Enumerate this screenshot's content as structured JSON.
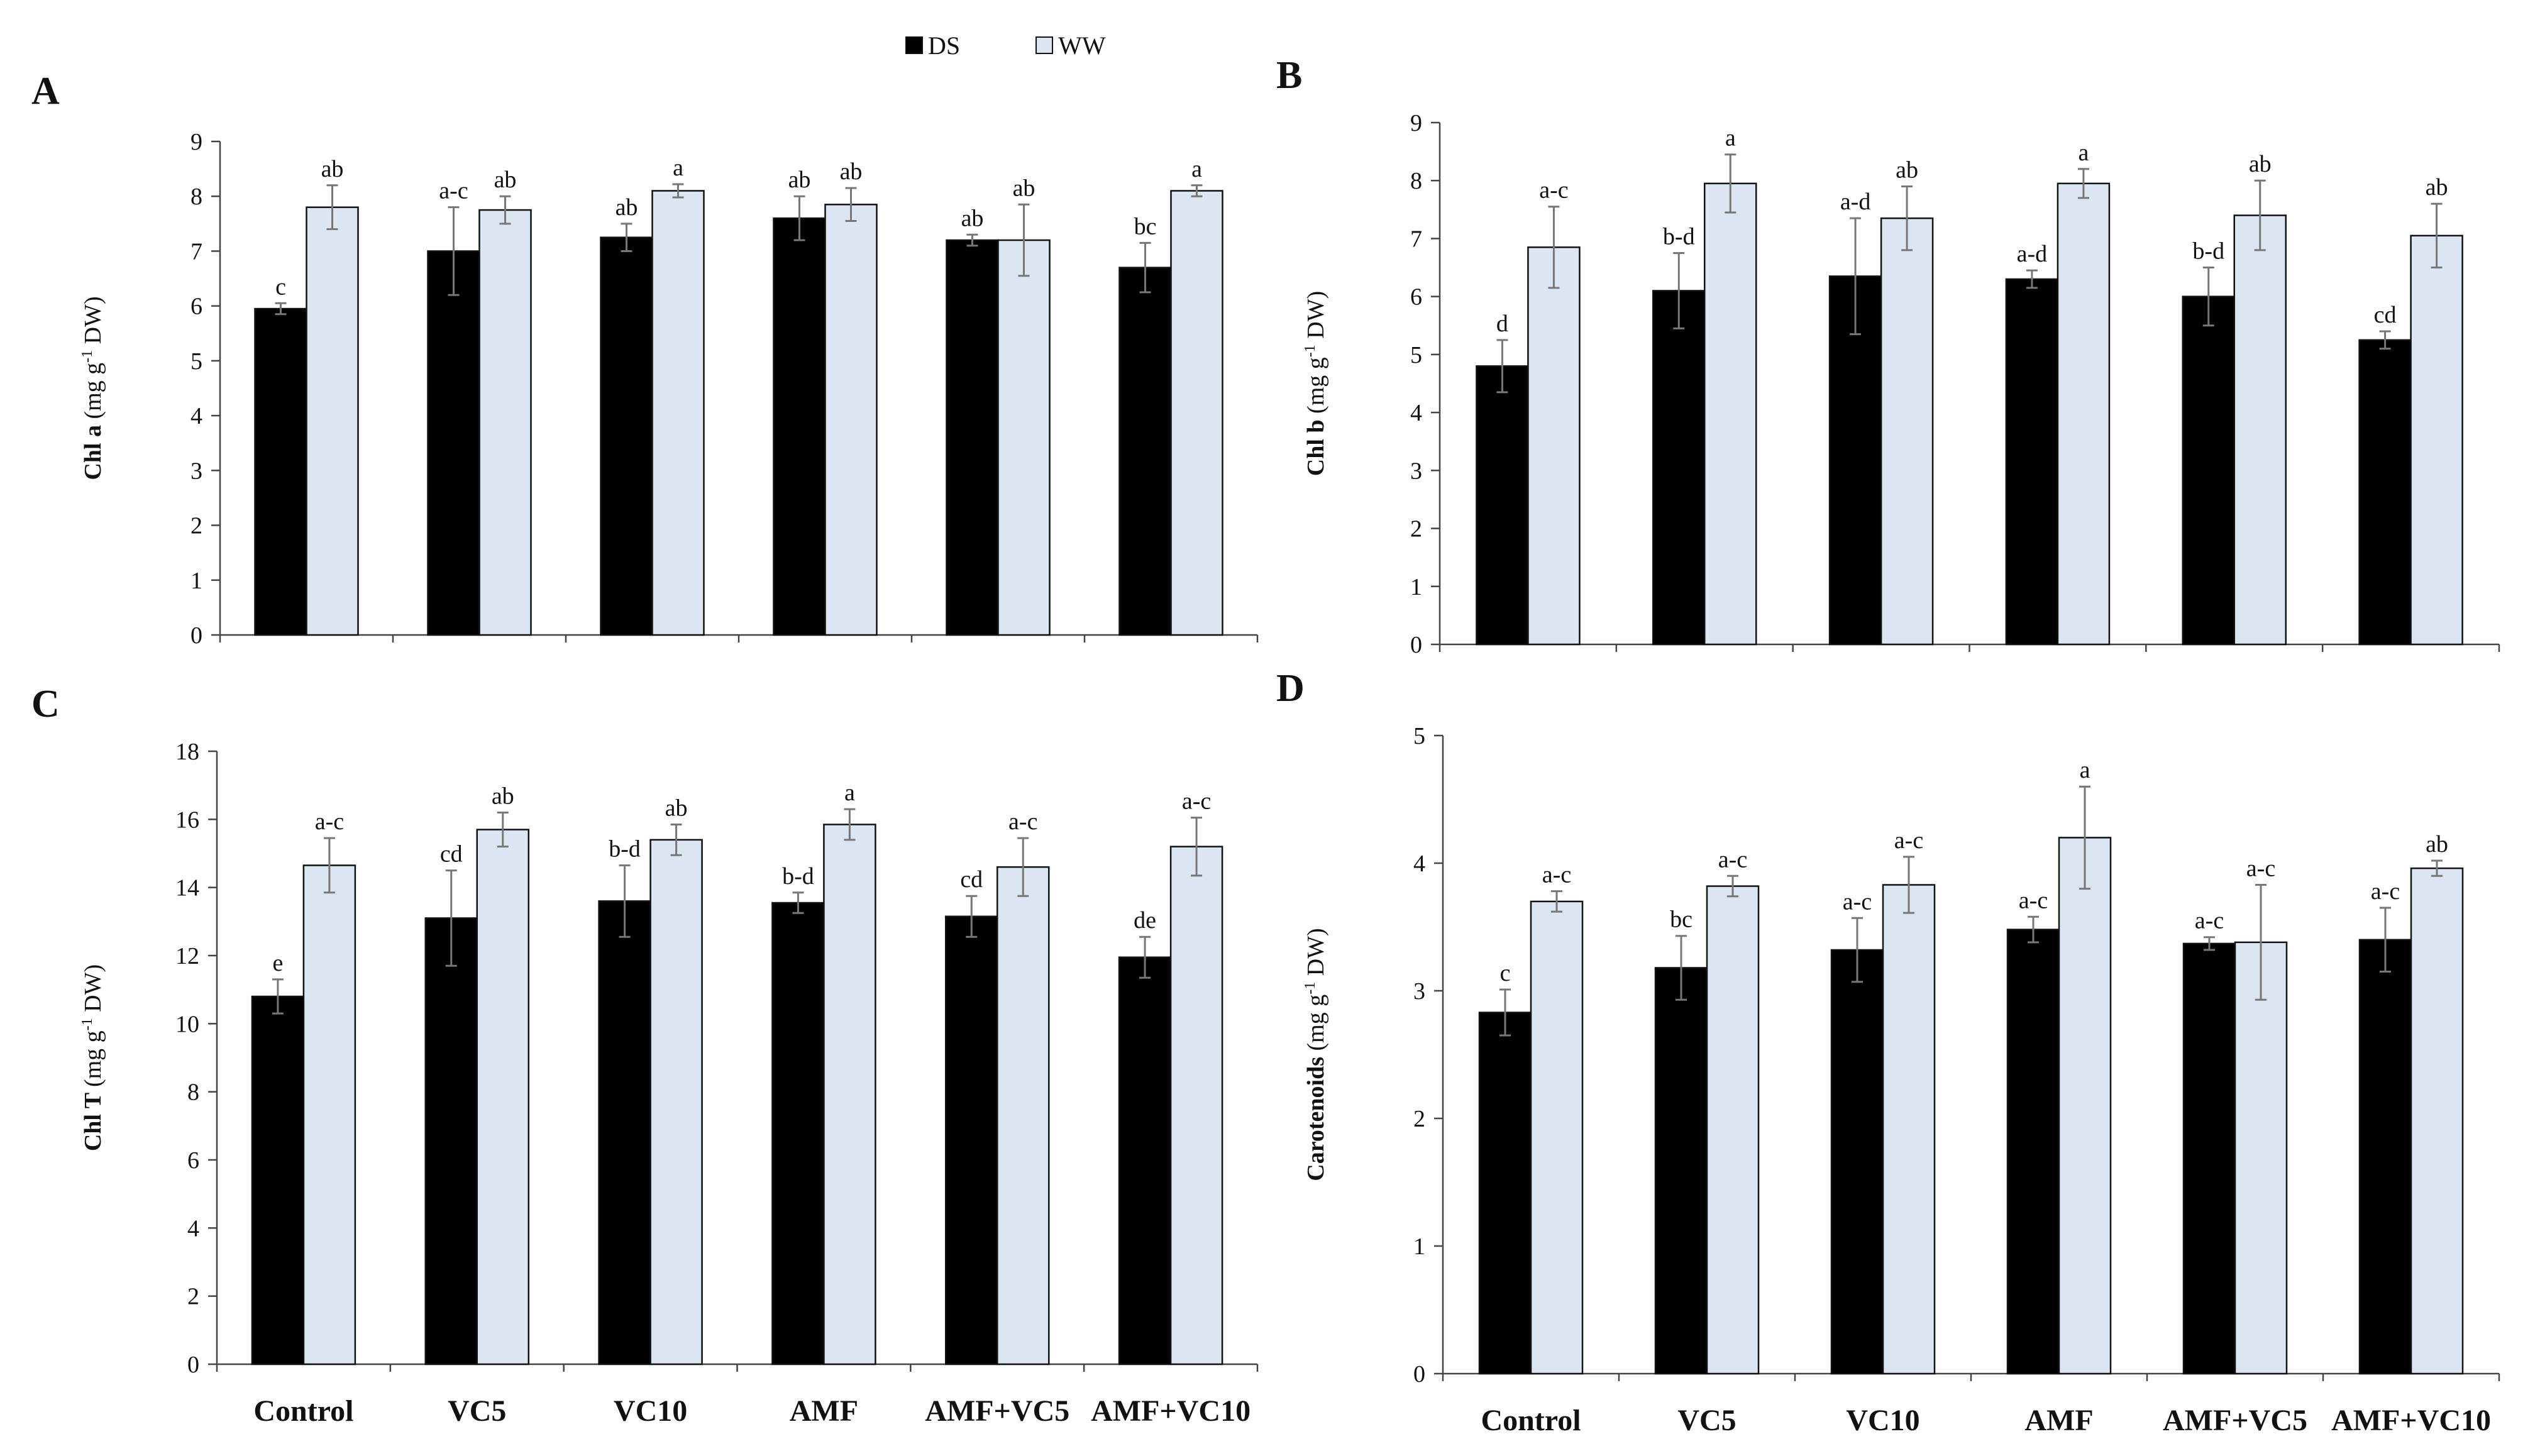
{
  "legend": {
    "ds_label": "DS",
    "ww_label": "WW",
    "ds_color": "#000000",
    "ww_color": "#dce6f2"
  },
  "chart_data": [
    {
      "panel": "A",
      "type": "bar",
      "title": "",
      "ylabel": "Chl a (mg g-1 DW)",
      "ylabel_main": "Chl a",
      "ylabel_unit_pre": "(mg g",
      "ylabel_unit_sup": "-1",
      "ylabel_unit_post": " DW)",
      "xlabel": "",
      "ylim": [
        0,
        9
      ],
      "yticks": [
        0,
        1,
        2,
        3,
        4,
        5,
        6,
        7,
        8,
        9
      ],
      "categories": [
        "Control",
        "VC5",
        "VC10",
        "AMF",
        "AMF+VC5",
        "AMF+VC10"
      ],
      "series": [
        {
          "name": "DS",
          "values": [
            5.95,
            7.0,
            7.25,
            7.6,
            7.2,
            6.7
          ],
          "errors": [
            0.1,
            0.8,
            0.25,
            0.4,
            0.1,
            0.45
          ],
          "letters": [
            "c",
            "a-c",
            "ab",
            "ab",
            "ab",
            "bc"
          ]
        },
        {
          "name": "WW",
          "values": [
            7.8,
            7.75,
            8.1,
            7.85,
            7.2,
            8.1
          ],
          "errors": [
            0.4,
            0.25,
            0.12,
            0.3,
            0.65,
            0.1
          ],
          "letters": [
            "ab",
            "ab",
            "a",
            "ab",
            "ab",
            "a"
          ]
        }
      ]
    },
    {
      "panel": "B",
      "type": "bar",
      "title": "",
      "ylabel": "Chl b (mg g-1 DW)",
      "ylabel_main": "Chl b",
      "ylabel_unit_pre": "(mg g",
      "ylabel_unit_sup": "-1",
      "ylabel_unit_post": " DW)",
      "xlabel": "",
      "ylim": [
        0,
        9
      ],
      "yticks": [
        0,
        1,
        2,
        3,
        4,
        5,
        6,
        7,
        8,
        9
      ],
      "categories": [
        "Control",
        "VC5",
        "VC10",
        "AMF",
        "AMF+VC5",
        "AMF+VC10"
      ],
      "series": [
        {
          "name": "DS",
          "values": [
            4.8,
            6.1,
            6.35,
            6.3,
            6.0,
            5.25
          ],
          "errors": [
            0.45,
            0.65,
            1.0,
            0.15,
            0.5,
            0.15
          ],
          "letters": [
            "d",
            "b-d",
            "a-d",
            "a-d",
            "b-d",
            "cd"
          ]
        },
        {
          "name": "WW",
          "values": [
            6.85,
            7.95,
            7.35,
            7.95,
            7.4,
            7.05
          ],
          "errors": [
            0.7,
            0.5,
            0.55,
            0.25,
            0.6,
            0.55
          ],
          "letters": [
            "a-c",
            "a",
            "ab",
            "a",
            "ab",
            "ab"
          ]
        }
      ]
    },
    {
      "panel": "C",
      "type": "bar",
      "title": "",
      "ylabel": "Chl T (mg g-1 DW)",
      "ylabel_main": "Chl T",
      "ylabel_unit_pre": "(mg g",
      "ylabel_unit_sup": "-1",
      "ylabel_unit_post": " DW)",
      "xlabel": "",
      "ylim": [
        0,
        18
      ],
      "yticks": [
        0,
        2,
        4,
        6,
        8,
        10,
        12,
        14,
        16,
        18
      ],
      "categories": [
        "Control",
        "VC5",
        "VC10",
        "AMF",
        "AMF+VC5",
        "AMF+VC10"
      ],
      "series": [
        {
          "name": "DS",
          "values": [
            10.8,
            13.1,
            13.6,
            13.55,
            13.15,
            11.95
          ],
          "errors": [
            0.5,
            1.4,
            1.05,
            0.3,
            0.6,
            0.6
          ],
          "letters": [
            "e",
            "cd",
            "b-d",
            "b-d",
            "cd",
            "de"
          ]
        },
        {
          "name": "WW",
          "values": [
            14.65,
            15.7,
            15.4,
            15.85,
            14.6,
            15.2
          ],
          "errors": [
            0.8,
            0.5,
            0.45,
            0.45,
            0.85,
            0.85
          ],
          "letters": [
            "a-c",
            "ab",
            "ab",
            "a",
            "a-c",
            "a-c"
          ]
        }
      ]
    },
    {
      "panel": "D",
      "type": "bar",
      "title": "",
      "ylabel": "Carotenoids (mg g-1 DW)",
      "ylabel_main": "Carotenoids",
      "ylabel_unit_pre": "(mg g",
      "ylabel_unit_sup": "-1",
      "ylabel_unit_post": " DW)",
      "xlabel": "",
      "ylim": [
        0,
        5
      ],
      "yticks": [
        0,
        1,
        2,
        3,
        4,
        5
      ],
      "categories": [
        "Control",
        "VC5",
        "VC10",
        "AMF",
        "AMF+VC5",
        "AMF+VC10"
      ],
      "series": [
        {
          "name": "DS",
          "values": [
            2.83,
            3.18,
            3.32,
            3.48,
            3.37,
            3.4
          ],
          "errors": [
            0.18,
            0.25,
            0.25,
            0.1,
            0.05,
            0.25
          ],
          "letters": [
            "c",
            "bc",
            "a-c",
            "a-c",
            "a-c",
            "a-c"
          ]
        },
        {
          "name": "WW",
          "values": [
            3.7,
            3.82,
            3.83,
            4.2,
            3.38,
            3.96
          ],
          "errors": [
            0.08,
            0.08,
            0.22,
            0.4,
            0.45,
            0.06
          ],
          "letters": [
            "a-c",
            "a-c",
            "a-c",
            "a",
            "a-c",
            "ab"
          ]
        }
      ]
    }
  ]
}
